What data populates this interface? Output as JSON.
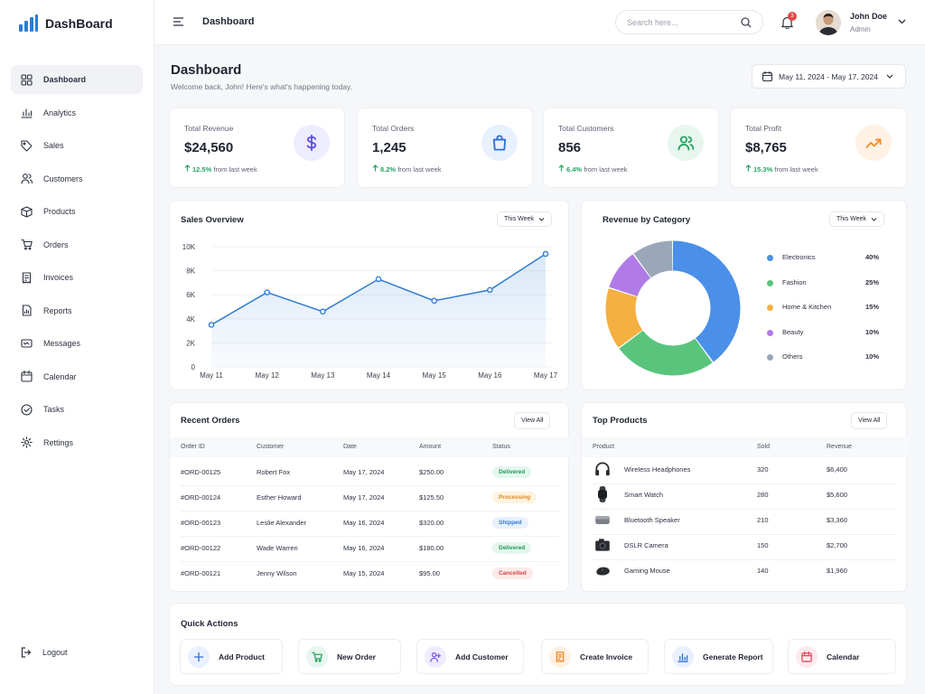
{
  "brand": {
    "name": "DashBoard"
  },
  "sidebar": {
    "items": [
      {
        "label": "Dashboard",
        "icon": "grid-icon",
        "active": true
      },
      {
        "label": "Analytics",
        "icon": "bar-chart-icon"
      },
      {
        "label": "Sales",
        "icon": "tag-icon"
      },
      {
        "label": "Customers",
        "icon": "users-icon"
      },
      {
        "label": "Products",
        "icon": "box-icon"
      },
      {
        "label": "Orders",
        "icon": "cart-icon"
      },
      {
        "label": "Invoices",
        "icon": "invoice-icon"
      },
      {
        "label": "Reports",
        "icon": "report-icon"
      },
      {
        "label": "Messages",
        "icon": "message-icon"
      },
      {
        "label": "Calendar",
        "icon": "calendar-icon"
      },
      {
        "label": "Tasks",
        "icon": "check-circle-icon"
      },
      {
        "label": "Rettings",
        "icon": "gear-icon"
      }
    ],
    "logout": "Logout"
  },
  "topbar": {
    "title": "Dashboard",
    "search_placeholder": "Search here...",
    "notification_count": "3",
    "user_name": "John Doe",
    "user_role": "Admin"
  },
  "header": {
    "title": "Dashboard",
    "subtitle": "Welcome back, John! Here's what's happening today.",
    "date_range": "May 11, 2024 - May 17, 2024"
  },
  "stats": [
    {
      "label": "Total Revenue",
      "value": "$24,560",
      "change": "12.5%",
      "suffix": "from last week",
      "icon": "dollar-icon",
      "color": "#5b4ee8",
      "bg": "#eeedff"
    },
    {
      "label": "Total Orders",
      "value": "1,245",
      "change": "8.2%",
      "suffix": "from last week",
      "icon": "bag-icon",
      "color": "#2c6fd6",
      "bg": "#e9f1ff"
    },
    {
      "label": "Total Customers",
      "value": "856",
      "change": "6.4%",
      "suffix": "from last week",
      "icon": "users-icon",
      "color": "#27a15f",
      "bg": "#e7f6ee"
    },
    {
      "label": "Total Profit",
      "value": "$8,765",
      "change": "15.3%",
      "suffix": "from last week",
      "icon": "trend-up-icon",
      "color": "#ef8b2b",
      "bg": "#fff1e4"
    }
  ],
  "sales_overview": {
    "title": "Sales Overview",
    "filter": "This Week"
  },
  "revenue_by_category": {
    "title": "Revenue by Category",
    "filter": "This Week"
  },
  "chart_data": [
    {
      "type": "area",
      "title": "Sales Overview",
      "categories": [
        "May 11",
        "May 12",
        "May 13",
        "May 14",
        "May 15",
        "May 16",
        "May 17"
      ],
      "values": [
        3500,
        6200,
        4600,
        7300,
        5500,
        6400,
        9400
      ],
      "ylim": [
        0,
        10000
      ],
      "yticks": [
        "0",
        "2K",
        "4K",
        "6K",
        "8K",
        "10K"
      ],
      "color": "#2f7cd3",
      "grid": true
    },
    {
      "type": "pie",
      "title": "Revenue by Category",
      "donut": true,
      "legend": "right",
      "slices": [
        {
          "label": "Electronics",
          "value": 40,
          "pct": "40%",
          "color": "#4a90e8"
        },
        {
          "label": "Fashion",
          "value": 25,
          "pct": "25%",
          "color": "#5ac47d"
        },
        {
          "label": "Home & Kitchen",
          "value": 15,
          "pct": "15%",
          "color": "#f5b041"
        },
        {
          "label": "Beauty",
          "value": 10,
          "pct": "10%",
          "color": "#b07be6"
        },
        {
          "label": "Others",
          "value": 10,
          "pct": "10%",
          "color": "#9aa7b8"
        }
      ]
    }
  ],
  "recent_orders": {
    "title": "Recent Orders",
    "view_all": "View All",
    "columns": [
      "Order ID",
      "Customer",
      "Date",
      "Amount",
      "Status"
    ],
    "rows": [
      {
        "id": "#ORD-00125",
        "customer": "Robert Fox",
        "date": "May 17, 2024",
        "amount": "$250.00",
        "status": "Delivered"
      },
      {
        "id": "#ORD-00124",
        "customer": "Esther Howard",
        "date": "May 17, 2024",
        "amount": "$125.50",
        "status": "Processing"
      },
      {
        "id": "#ORD-00123",
        "customer": "Leslie Alexander",
        "date": "May 16, 2024",
        "amount": "$320.00",
        "status": "Shipped"
      },
      {
        "id": "#ORD-00122",
        "customer": "Wade Warren",
        "date": "May 16, 2024",
        "amount": "$180.00",
        "status": "Delivered"
      },
      {
        "id": "#ORD-00121",
        "customer": "Jenny Wilson",
        "date": "May 15, 2024",
        "amount": "$95.00",
        "status": "Cancelled"
      }
    ]
  },
  "status_colors": {
    "Delivered": {
      "fg": "#1f9a59",
      "bg": "#e5f6ec"
    },
    "Processing": {
      "fg": "#d98a1c",
      "bg": "#fff3e0"
    },
    "Shipped": {
      "fg": "#2f7cd3",
      "bg": "#e8f1fd"
    },
    "Cancelled": {
      "fg": "#d64545",
      "bg": "#fdeaea"
    }
  },
  "top_products": {
    "title": "Top Products",
    "view_all": "View All",
    "columns": [
      "Product",
      "Sold",
      "Revenue"
    ],
    "rows": [
      {
        "name": "Wireless Headphones",
        "sold": "320",
        "revenue": "$6,400",
        "icon": "headphones-icon"
      },
      {
        "name": "Smart Watch",
        "sold": "280",
        "revenue": "$5,600",
        "icon": "watch-icon"
      },
      {
        "name": "Bluetooth Speaker",
        "sold": "210",
        "revenue": "$3,360",
        "icon": "speaker-icon"
      },
      {
        "name": "DSLR Camera",
        "sold": "150",
        "revenue": "$2,700",
        "icon": "camera-icon"
      },
      {
        "name": "Gaming Mouse",
        "sold": "140",
        "revenue": "$1,960",
        "icon": "mouse-icon"
      }
    ]
  },
  "quick_actions": {
    "title": "Quick Actions",
    "items": [
      {
        "label": "Add Product",
        "icon": "plus-icon",
        "color": "#2c6fd6",
        "bg": "#e9f1ff"
      },
      {
        "label": "New Order",
        "icon": "cart-icon",
        "color": "#27a15f",
        "bg": "#e7f6ee"
      },
      {
        "label": "Add Customer",
        "icon": "add-user-icon",
        "color": "#7b5ce6",
        "bg": "#f0ecff"
      },
      {
        "label": "Create Invoice",
        "icon": "invoice-icon",
        "color": "#ef8b2b",
        "bg": "#fff1e4"
      },
      {
        "label": "Generate Report",
        "icon": "bar-chart-icon",
        "color": "#2c6fd6",
        "bg": "#e9f1ff"
      },
      {
        "label": "Calendar",
        "icon": "calendar-icon",
        "color": "#e04a5a",
        "bg": "#fdeaed"
      }
    ]
  }
}
